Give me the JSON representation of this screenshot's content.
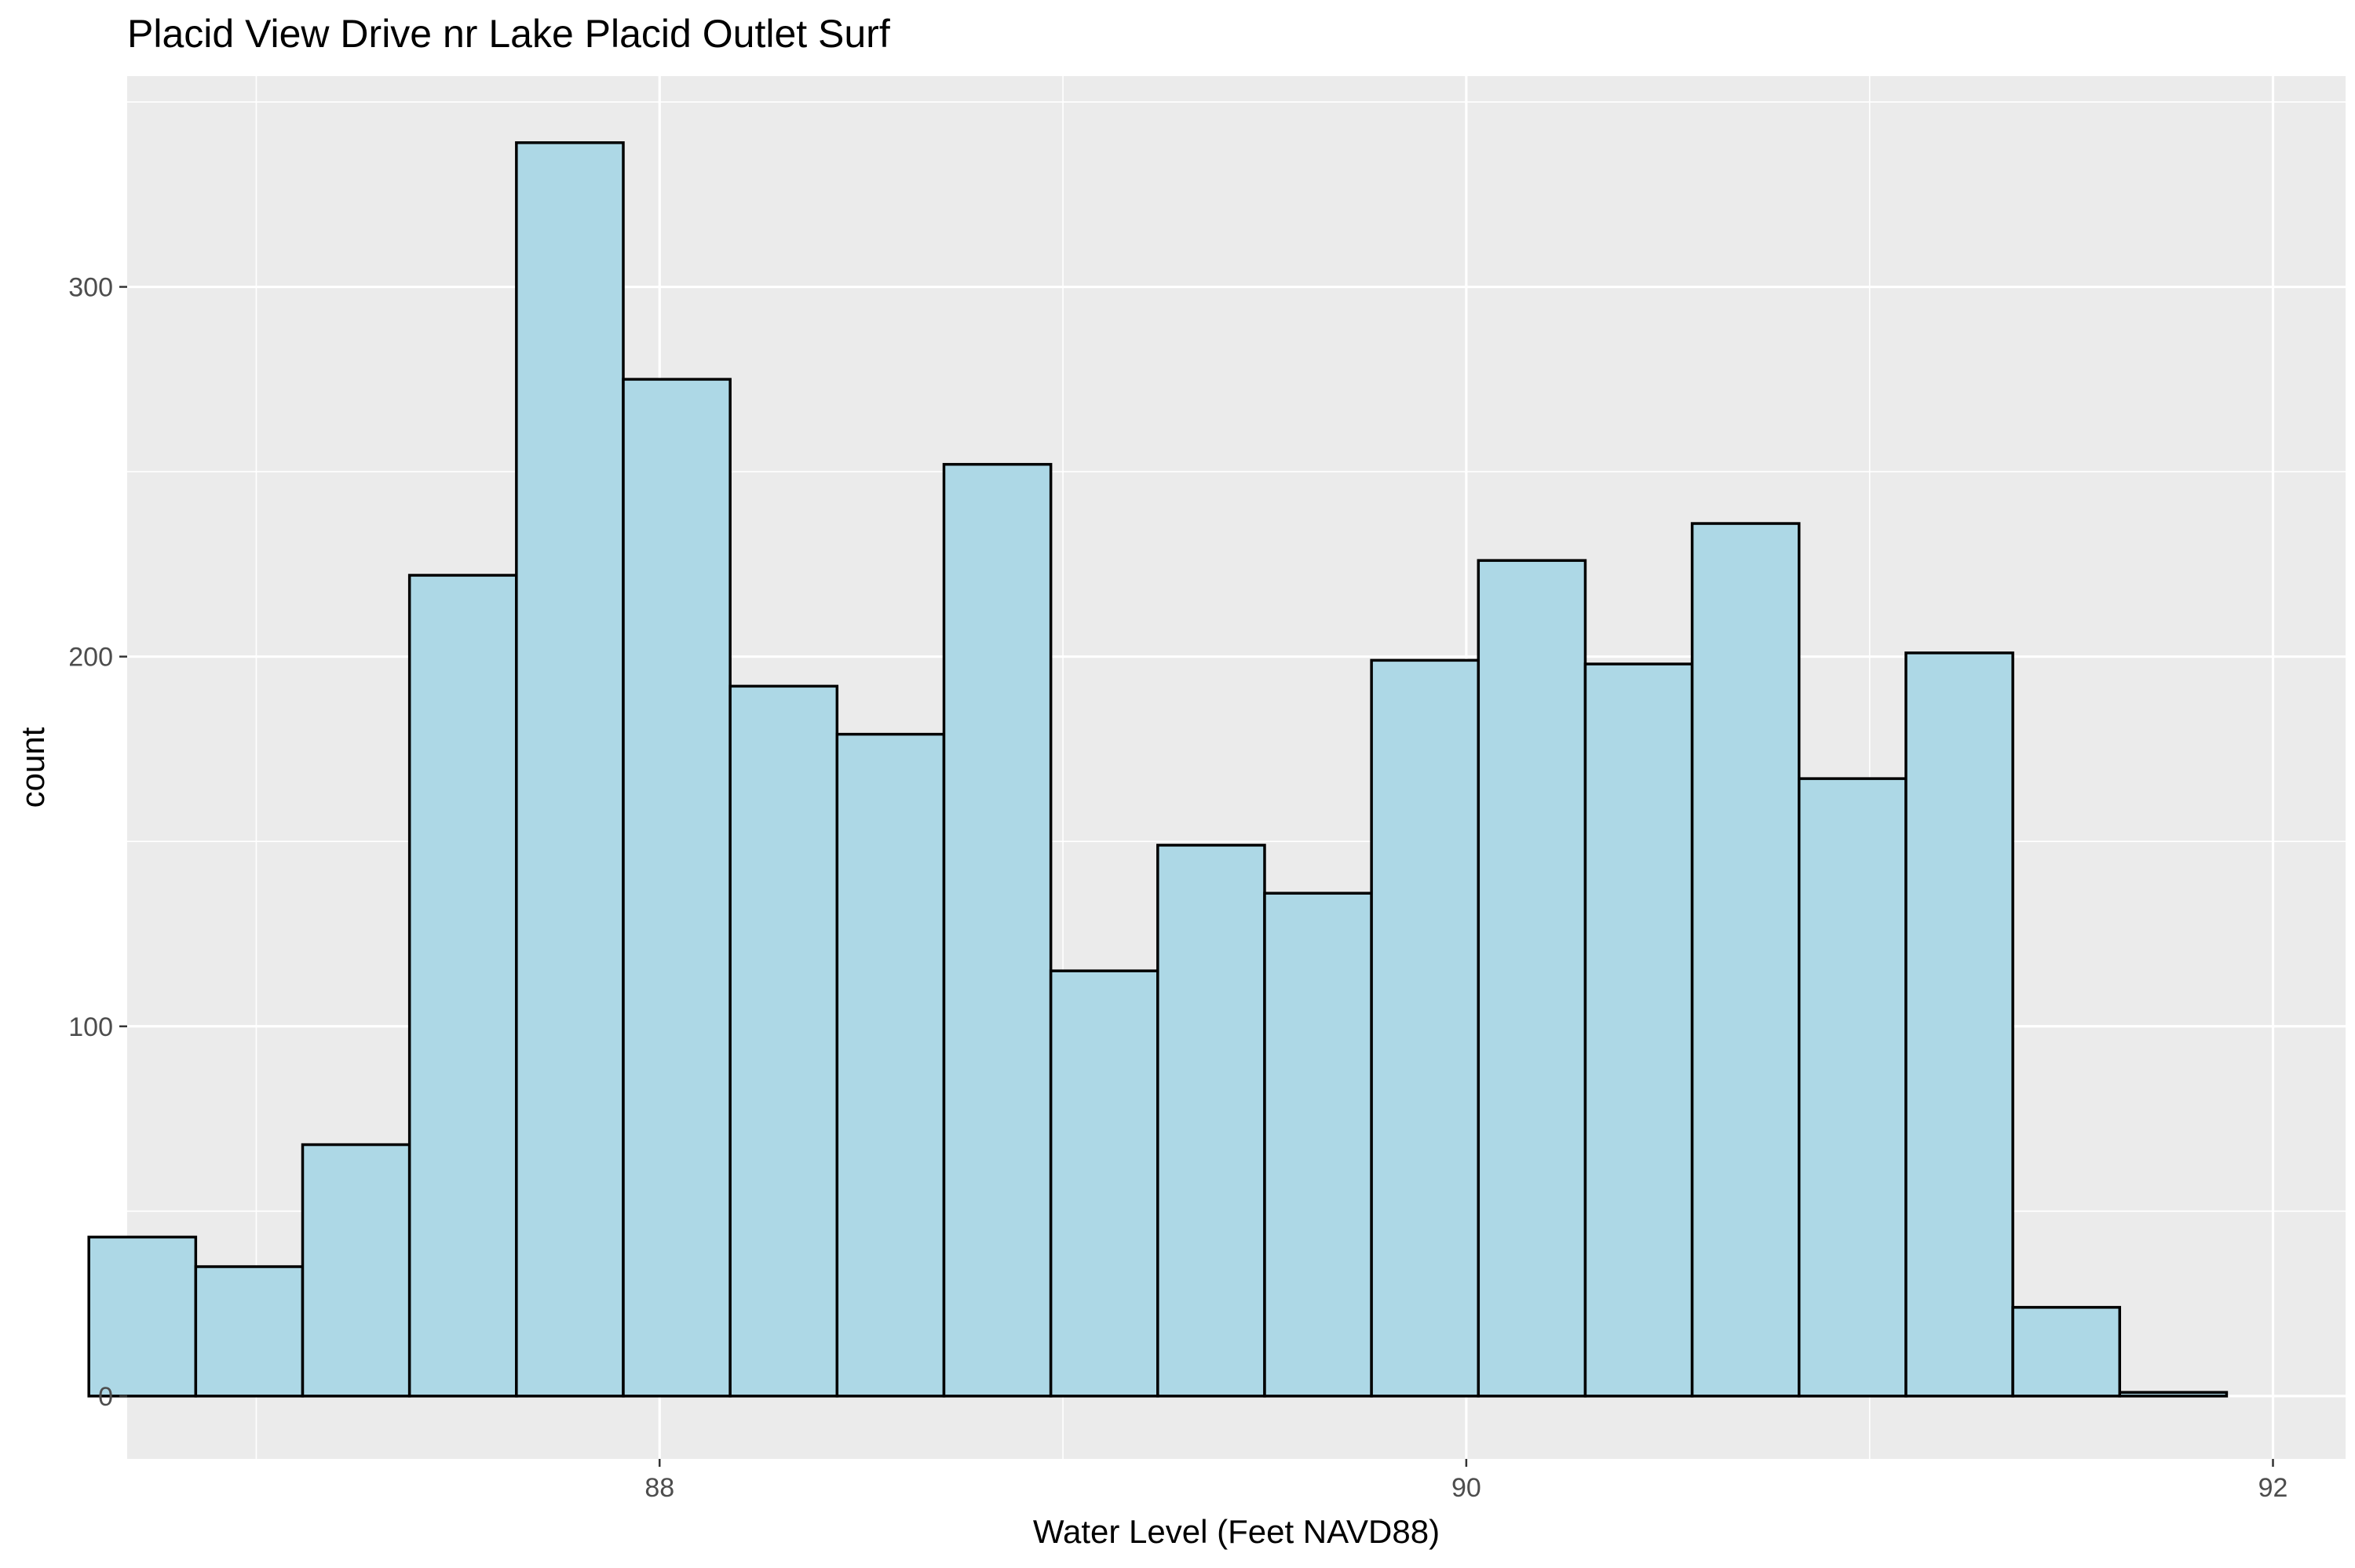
{
  "chart_data": {
    "type": "histogram",
    "title": "Placid View Drive nr Lake Placid Outlet Surf",
    "xlabel": "Water Level (Feet NAVD88)",
    "ylabel": "count",
    "xlim": [
      86.68,
      92.18
    ],
    "ylim": [
      -17,
      357
    ],
    "x_ticks": [
      88,
      90,
      92
    ],
    "y_ticks": [
      0,
      100,
      200,
      300
    ],
    "grid": true,
    "legend": "none",
    "bin_width": 0.265,
    "bins": [
      {
        "x0": 86.585,
        "x1": 86.85,
        "count": 43
      },
      {
        "x0": 86.85,
        "x1": 87.115,
        "count": 35
      },
      {
        "x0": 87.115,
        "x1": 87.38,
        "count": 68
      },
      {
        "x0": 87.38,
        "x1": 87.645,
        "count": 222
      },
      {
        "x0": 87.645,
        "x1": 87.91,
        "count": 339
      },
      {
        "x0": 87.91,
        "x1": 88.175,
        "count": 275
      },
      {
        "x0": 88.175,
        "x1": 88.44,
        "count": 192
      },
      {
        "x0": 88.44,
        "x1": 88.705,
        "count": 179
      },
      {
        "x0": 88.705,
        "x1": 88.97,
        "count": 252
      },
      {
        "x0": 88.97,
        "x1": 89.235,
        "count": 115
      },
      {
        "x0": 89.235,
        "x1": 89.5,
        "count": 149
      },
      {
        "x0": 89.5,
        "x1": 89.765,
        "count": 136
      },
      {
        "x0": 89.765,
        "x1": 90.03,
        "count": 199
      },
      {
        "x0": 90.03,
        "x1": 90.295,
        "count": 226
      },
      {
        "x0": 90.295,
        "x1": 90.56,
        "count": 198
      },
      {
        "x0": 90.56,
        "x1": 90.825,
        "count": 236
      },
      {
        "x0": 90.825,
        "x1": 91.09,
        "count": 167
      },
      {
        "x0": 91.09,
        "x1": 91.355,
        "count": 201
      },
      {
        "x0": 91.355,
        "x1": 91.62,
        "count": 24
      },
      {
        "x0": 91.62,
        "x1": 91.885,
        "count": 1
      }
    ],
    "colors": {
      "bar_fill": "#ADD8E6",
      "bar_outline": "#000000",
      "panel_background": "#EBEBEB",
      "grid_line": "#FFFFFF"
    }
  }
}
